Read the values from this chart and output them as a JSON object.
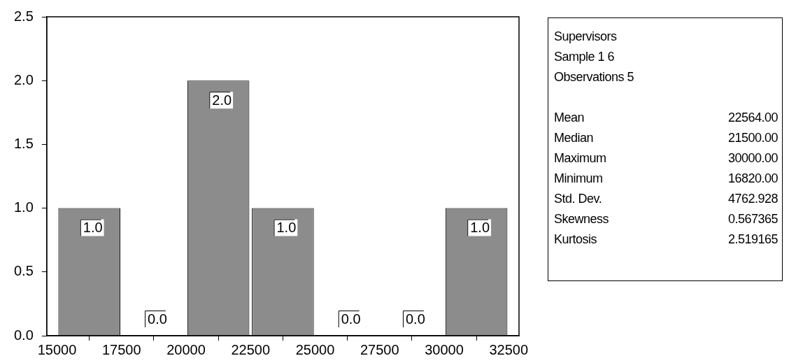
{
  "chart_data": {
    "type": "histogram",
    "bins": [
      15000,
      17500,
      20000,
      22500,
      25000,
      27500,
      30000,
      32500
    ],
    "values": [
      1,
      0,
      2,
      1,
      0,
      0,
      1
    ],
    "value_labels": [
      "1.0",
      "0.0",
      "2.0",
      "1.0",
      "0.0",
      "0.0",
      "1.0"
    ],
    "color": "#8c8c8c",
    "xlim": [
      14600,
      32900
    ],
    "xticks": [
      15000,
      17500,
      20000,
      22500,
      25000,
      27500,
      30000,
      32500
    ],
    "ylim": [
      0,
      2.5
    ],
    "yticks": [
      {
        "value": 0,
        "label": "0.0"
      },
      {
        "value": 0.5,
        "label": "0.5"
      },
      {
        "value": 1,
        "label": "1.0"
      },
      {
        "value": 1.5,
        "label": "1.5"
      },
      {
        "value": 2,
        "label": "2.0"
      },
      {
        "value": 2.5,
        "label": "2.5"
      }
    ],
    "grid": false,
    "legend": false,
    "annotations": [
      "Supervisors",
      "Sample 1 6",
      "Observations 5",
      "Mean\t22564.00",
      "Median\t21500.00",
      "Maximum\t30000.00",
      "Minimum\t16820.00",
      "Std. Dev.\t4762.928",
      "Skewness\t0.567365",
      "Kurtosis\t2.519165"
    ]
  }
}
